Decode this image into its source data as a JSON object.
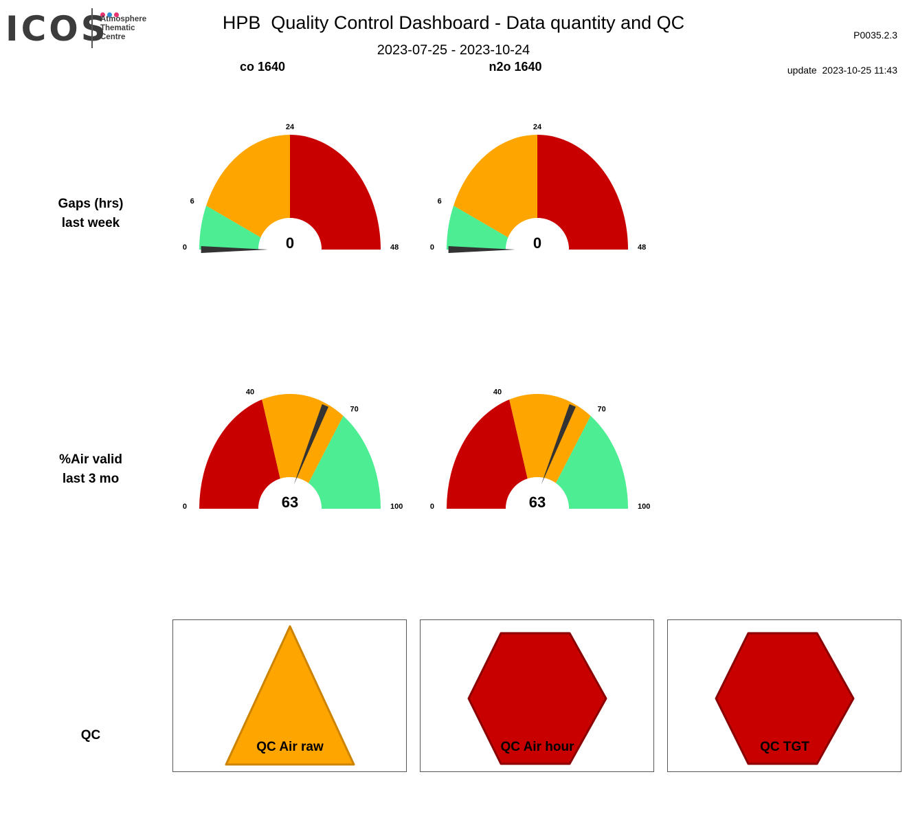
{
  "logo": {
    "word": "ICOS",
    "subtitle_lines": [
      "Atmosphere",
      "Thematic",
      "Centre"
    ],
    "dot_colors": [
      "#e8336e",
      "#2d8fdc",
      "#e8336e"
    ]
  },
  "header": {
    "title": "HPB  Quality Control Dashboard - Data quantity and QC",
    "version": "P0035.2.3",
    "update": "update  2023-10-25 11:43",
    "period": "2023-07-25 - 2023-10-24"
  },
  "columns": [
    "co 1640",
    "n2o 1640"
  ],
  "rows": {
    "gaps": {
      "line1": "Gaps (hrs)",
      "line2": "last week"
    },
    "air": {
      "line1": "%Air valid",
      "line2": "last 3 mo"
    },
    "qc": {
      "label": "QC"
    }
  },
  "colors": {
    "green": "#4ded93",
    "orange": "#ffa500",
    "red": "#c80000",
    "needle": "#333333"
  },
  "chart_data": [
    {
      "type": "gauge",
      "id": "gaps-co",
      "series": "co 1640",
      "metric": "Gaps (hrs) last week",
      "min": 0,
      "max": 48,
      "ticks": [
        0,
        6,
        24,
        48
      ],
      "bands": [
        {
          "from": 0,
          "to": 6,
          "color": "green"
        },
        {
          "from": 6,
          "to": 24,
          "color": "orange"
        },
        {
          "from": 24,
          "to": 48,
          "color": "red"
        }
      ],
      "value": 0,
      "value_label": "0"
    },
    {
      "type": "gauge",
      "id": "gaps-n2o",
      "series": "n2o 1640",
      "metric": "Gaps (hrs) last week",
      "min": 0,
      "max": 48,
      "ticks": [
        0,
        6,
        24,
        48
      ],
      "bands": [
        {
          "from": 0,
          "to": 6,
          "color": "green"
        },
        {
          "from": 6,
          "to": 24,
          "color": "orange"
        },
        {
          "from": 24,
          "to": 48,
          "color": "red"
        }
      ],
      "value": 0,
      "value_label": "0"
    },
    {
      "type": "gauge",
      "id": "air-co",
      "series": "co 1640",
      "metric": "%Air valid last 3 mo",
      "min": 0,
      "max": 100,
      "ticks": [
        0,
        40,
        70,
        100
      ],
      "bands": [
        {
          "from": 0,
          "to": 40,
          "color": "red"
        },
        {
          "from": 40,
          "to": 70,
          "color": "orange"
        },
        {
          "from": 70,
          "to": 100,
          "color": "green"
        }
      ],
      "value": 63,
      "value_label": "63"
    },
    {
      "type": "gauge",
      "id": "air-n2o",
      "series": "n2o 1640",
      "metric": "%Air valid last 3 mo",
      "min": 0,
      "max": 100,
      "ticks": [
        0,
        40,
        70,
        100
      ],
      "bands": [
        {
          "from": 0,
          "to": 40,
          "color": "red"
        },
        {
          "from": 40,
          "to": 70,
          "color": "orange"
        },
        {
          "from": 70,
          "to": 100,
          "color": "green"
        }
      ],
      "value": 63,
      "value_label": "63"
    }
  ],
  "qc_indicators": [
    {
      "label": "QC Air raw",
      "shape": "triangle",
      "status": "warning",
      "color": "#ffa500",
      "stroke": "#cc8400"
    },
    {
      "label": "QC Air hour",
      "shape": "hexagon",
      "status": "fail",
      "color": "#c80000",
      "stroke": "#8a0000"
    },
    {
      "label": "QC TGT",
      "shape": "hexagon",
      "status": "fail",
      "color": "#c80000",
      "stroke": "#8a0000"
    }
  ]
}
